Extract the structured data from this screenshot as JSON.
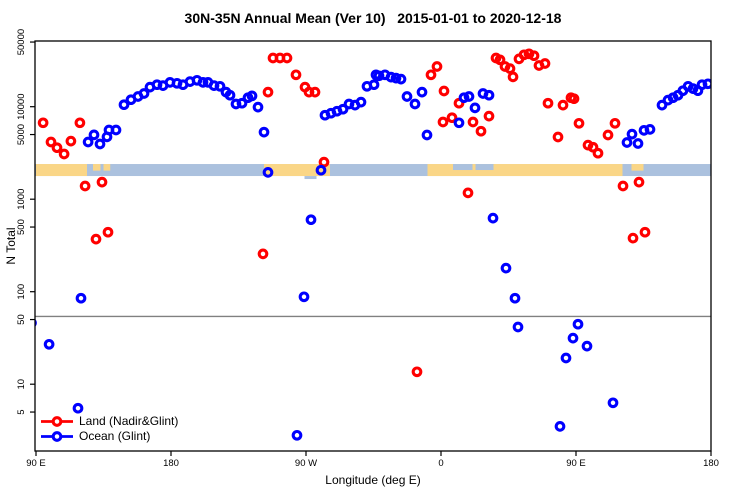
{
  "title": "30N-35N Annual Mean (Ver 10)   2015-01-01 to 2020-12-18",
  "chart_data": {
    "type": "scatter",
    "title": "30N-35N Annual Mean (Ver 10)   2015-01-01 to 2020-12-18",
    "xlabel": "Longitude (deg E)",
    "ylabel": "N Total",
    "x_axis": {
      "range_deg": [
        90,
        540
      ],
      "ticks": [
        {
          "deg": 90,
          "label": "90 E"
        },
        {
          "deg": 180,
          "label": "180"
        },
        {
          "deg": 270,
          "label": "90 W"
        },
        {
          "deg": 360,
          "label": "0"
        },
        {
          "deg": 450,
          "label": "90 E"
        },
        {
          "deg": 540,
          "label": "180"
        }
      ]
    },
    "y_axis": {
      "scale": "log",
      "range": [
        2,
        51000
      ],
      "ticks": [
        50000,
        10000,
        5000,
        1000,
        500,
        100,
        50,
        10,
        5
      ]
    },
    "grid": false,
    "reference_line": {
      "N": 54,
      "color": "#808080"
    },
    "map_band": {
      "comment": "land/ocean strip for 30N-35N latitude belt",
      "ocean_color": "#ABC1DE",
      "land_color": "#FAD687",
      "top_N": 2400,
      "bottom_N": 1780,
      "land_segments_deg": [
        [
          90,
          124
        ],
        [
          242,
          286
        ],
        [
          351,
          481
        ]
      ],
      "land_top_patches_deg": [
        [
          128,
          133
        ],
        [
          135,
          139.5
        ],
        [
          487,
          495
        ]
      ],
      "ocean_top_patches_deg": [
        [
          368,
          381
        ],
        [
          383,
          395
        ]
      ],
      "ocean_notch_below_deg": [
        269,
        277
      ]
    },
    "legend": {
      "position": "bottom-left",
      "items": [
        {
          "label": "Land (Nadir&Glint)",
          "color": "#FF0000"
        },
        {
          "label": "Ocean (Glint)",
          "color": "#0000FF"
        }
      ]
    },
    "series": [
      {
        "name": "Land (Nadir&Glint)",
        "color": "#FF0000",
        "marker": "open-circle",
        "points": [
          [
            94.7,
            6700
          ],
          [
            100,
            4150
          ],
          [
            104,
            3600
          ],
          [
            108.7,
            3080
          ],
          [
            113.3,
            4250
          ],
          [
            119.3,
            6700
          ],
          [
            122.7,
            1390
          ],
          [
            134,
            1530
          ],
          [
            130,
            370
          ],
          [
            138,
            440
          ],
          [
            241.3,
            256
          ],
          [
            244.7,
            14400
          ],
          [
            248,
            33600
          ],
          [
            252.7,
            33600
          ],
          [
            257.3,
            33600
          ],
          [
            263.3,
            22100
          ],
          [
            269.3,
            16300
          ],
          [
            272,
            14400
          ],
          [
            276,
            14400
          ],
          [
            282,
            2520
          ],
          [
            344,
            13.6
          ],
          [
            353.3,
            22100
          ],
          [
            357.3,
            27200
          ],
          [
            361.3,
            6830
          ],
          [
            362,
            14800
          ],
          [
            367.3,
            7600
          ],
          [
            372,
            10900
          ],
          [
            378,
            1170
          ],
          [
            381.3,
            6830
          ],
          [
            386.7,
            5440
          ],
          [
            392,
            7920
          ],
          [
            396.7,
            33600
          ],
          [
            399.3,
            32100
          ],
          [
            402.7,
            27200
          ],
          [
            406,
            25800
          ],
          [
            408,
            21000
          ],
          [
            412,
            32900
          ],
          [
            415.3,
            36400
          ],
          [
            418.7,
            37300
          ],
          [
            422,
            35600
          ],
          [
            425.3,
            27900
          ],
          [
            429.3,
            29300
          ],
          [
            431.3,
            10900
          ],
          [
            438,
            4700
          ],
          [
            441.3,
            10400
          ],
          [
            446.7,
            12500
          ],
          [
            448.7,
            12200
          ],
          [
            452,
            6620
          ],
          [
            458,
            3840
          ],
          [
            461.3,
            3650
          ],
          [
            464.7,
            3140
          ],
          [
            471.3,
            4940
          ],
          [
            476,
            6620
          ],
          [
            481.3,
            1390
          ],
          [
            488,
            380
          ],
          [
            492,
            1530
          ],
          [
            496,
            440
          ]
        ]
      },
      {
        "name": "Ocean (Glint)",
        "color": "#0000FF",
        "marker": "open-circle",
        "points": [
          [
            124.7,
            4150
          ],
          [
            128.7,
            4950
          ],
          [
            132.7,
            3950
          ],
          [
            137.3,
            4710
          ],
          [
            138.7,
            5600
          ],
          [
            143.3,
            5600
          ],
          [
            148.7,
            10500
          ],
          [
            153.3,
            11900
          ],
          [
            158,
            12900
          ],
          [
            162,
            13900
          ],
          [
            166,
            16300
          ],
          [
            170.7,
            17300
          ],
          [
            174.7,
            16900
          ],
          [
            179.3,
            18300
          ],
          [
            184,
            17900
          ],
          [
            188,
            17300
          ],
          [
            192.7,
            18700
          ],
          [
            197.3,
            19300
          ],
          [
            201.3,
            18300
          ],
          [
            204.7,
            18300
          ],
          [
            208.7,
            16900
          ],
          [
            212.7,
            16600
          ],
          [
            216.7,
            14400
          ],
          [
            219.3,
            13300
          ],
          [
            223.3,
            10700
          ],
          [
            227.3,
            10900
          ],
          [
            231.3,
            12500
          ],
          [
            234,
            13100
          ],
          [
            238,
            9900
          ],
          [
            242,
            5320
          ],
          [
            244.7,
            1950
          ],
          [
            280,
            2060
          ],
          [
            282.7,
            8100
          ],
          [
            286.7,
            8500
          ],
          [
            290.7,
            8930
          ],
          [
            294.7,
            9390
          ],
          [
            298.7,
            10700
          ],
          [
            302.7,
            10400
          ],
          [
            306.7,
            11200
          ],
          [
            310.7,
            16600
          ],
          [
            315.3,
            17300
          ],
          [
            316.7,
            22100
          ],
          [
            318.7,
            21600
          ],
          [
            322.7,
            22100
          ],
          [
            326.7,
            20900
          ],
          [
            330,
            20400
          ],
          [
            333.3,
            19900
          ],
          [
            337.3,
            12900
          ],
          [
            342.7,
            10700
          ],
          [
            347.3,
            14400
          ],
          [
            350.7,
            4940
          ],
          [
            372,
            6700
          ],
          [
            375.3,
            12500
          ],
          [
            378.7,
            12900
          ],
          [
            382.7,
            9700
          ],
          [
            388,
            13900
          ],
          [
            392,
            13300
          ],
          [
            484,
            4100
          ],
          [
            487.3,
            5050
          ],
          [
            491.3,
            4000
          ],
          [
            495.3,
            5550
          ],
          [
            499.3,
            5690
          ],
          [
            507.3,
            10400
          ],
          [
            511.3,
            11800
          ],
          [
            514.7,
            12500
          ],
          [
            518,
            13300
          ],
          [
            521.3,
            14900
          ],
          [
            524.7,
            16600
          ],
          [
            528,
            15700
          ],
          [
            531.3,
            14900
          ],
          [
            534,
            17300
          ],
          [
            538,
            17700
          ],
          [
            87,
            46
          ],
          [
            98.7,
            27
          ],
          [
            118,
            5.5
          ],
          [
            120,
            85
          ],
          [
            264,
            2.8
          ],
          [
            268.7,
            88
          ],
          [
            273.3,
            600
          ],
          [
            394.7,
            625
          ],
          [
            403.3,
            180
          ],
          [
            409.3,
            85
          ],
          [
            411.3,
            41.5
          ],
          [
            439.3,
            3.5
          ],
          [
            443.3,
            19.2
          ],
          [
            448,
            31.5
          ],
          [
            451.3,
            44.5
          ],
          [
            457.3,
            25.8
          ],
          [
            474.7,
            6.3
          ]
        ]
      }
    ]
  }
}
